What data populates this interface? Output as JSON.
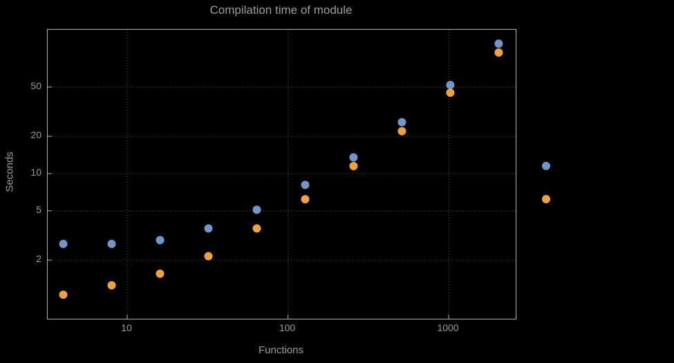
{
  "chart_data": {
    "type": "scatter",
    "title": "Compilation time of module",
    "xlabel": "Functions",
    "ylabel": "Seconds",
    "xscale": "log",
    "yscale": "log",
    "xlim": [
      3.2,
      2613
    ],
    "ylim": [
      0.671,
      145.2
    ],
    "grid": true,
    "x_ticks": [
      10,
      100,
      1000
    ],
    "y_ticks": [
      2,
      5,
      10,
      20,
      50
    ],
    "series": [
      {
        "name": "series-blue",
        "color": "#7295cb",
        "x": [
          4,
          8,
          16,
          32,
          64,
          128,
          256,
          512,
          1024,
          2048
        ],
        "y": [
          2.7,
          2.7,
          2.9,
          3.6,
          5.1,
          8.1,
          13.5,
          26,
          52,
          112
        ]
      },
      {
        "name": "series-orange",
        "color": "#f0a33c",
        "x": [
          4,
          8,
          16,
          32,
          64,
          128,
          256,
          512,
          1024,
          2048
        ],
        "y": [
          1.05,
          1.25,
          1.55,
          2.15,
          3.6,
          6.2,
          11.5,
          22,
          45,
          95
        ]
      }
    ],
    "legend": {
      "position": "right",
      "markers": [
        {
          "name": "legend-marker-blue",
          "color": "#7295cb"
        },
        {
          "name": "legend-marker-orange",
          "color": "#f0a33c"
        }
      ]
    },
    "colors": {
      "background": "#000000",
      "frame": "#b3b3b3",
      "grid": "#5c5c5c",
      "text": "#9c9c9c"
    }
  }
}
